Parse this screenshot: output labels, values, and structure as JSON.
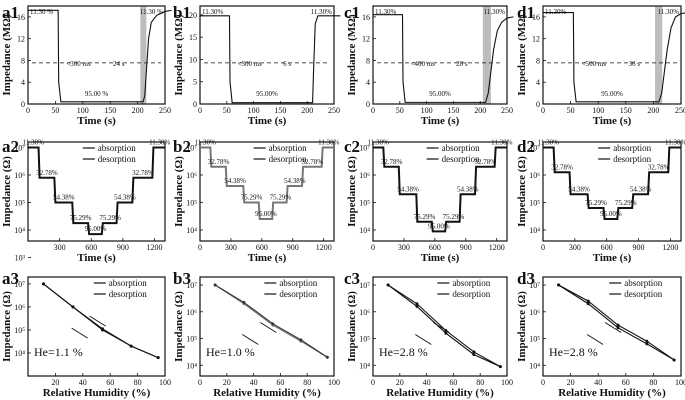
{
  "chart_data": [
    {
      "id": "a1",
      "type": "line",
      "row": 1,
      "col": 0,
      "title": "a1",
      "xlabel": "Time (s)",
      "ylabel": "Impedance (MΩ)",
      "xlim": [
        0,
        250
      ],
      "ylim": [
        0,
        18
      ],
      "xticks": [
        "0",
        "50",
        "100",
        "150",
        "200",
        "250"
      ],
      "yticks": [
        "0",
        "4",
        "8",
        "12",
        "16"
      ],
      "annotations": {
        "left": "11.30 %",
        "right": "11.30 %",
        "center": "95.00 %",
        "response": "<300 ms",
        "recovery": "24 s"
      },
      "series": [
        {
          "x": [
            0,
            55,
            56,
            60,
            210,
            213,
            216,
            220,
            225,
            235,
            250,
            262
          ],
          "y": [
            17.2,
            17.2,
            4,
            0.4,
            0.4,
            1.5,
            6,
            12,
            15,
            16.3,
            17,
            17.2
          ]
        }
      ],
      "shaded": [
        205,
        216
      ]
    },
    {
      "id": "b1",
      "type": "line",
      "row": 1,
      "col": 1,
      "title": "b1",
      "xlabel": "Time (s)",
      "ylabel": "Impedance (MΩ)",
      "xlim": [
        0,
        250
      ],
      "ylim": [
        0,
        22
      ],
      "xticks": [
        "0",
        "50",
        "100",
        "150",
        "200",
        "250"
      ],
      "yticks": [
        "0",
        "5",
        "10",
        "15",
        "20"
      ],
      "annotations": {
        "left": "11.30%",
        "right": "11.30%",
        "center": "95.00%",
        "response": "<300 ms",
        "recovery": "6 s"
      },
      "series": [
        {
          "x": [
            0,
            55,
            56,
            60,
            210,
            212,
            215,
            220,
            262
          ],
          "y": [
            19.8,
            19.8,
            5,
            0.3,
            0.3,
            8,
            18,
            19.8,
            19.8
          ]
        }
      ],
      "shaded": []
    },
    {
      "id": "c1",
      "type": "line",
      "row": 1,
      "col": 2,
      "title": "c1",
      "xlabel": "Time (s)",
      "ylabel": "Impedance (MΩ)",
      "xlim": [
        0,
        250
      ],
      "ylim": [
        0,
        18
      ],
      "xticks": [
        "0",
        "50",
        "100",
        "150",
        "200",
        "250"
      ],
      "yticks": [
        "0",
        "4",
        "8",
        "12",
        "16"
      ],
      "annotations": {
        "left": "11.30%",
        "right": "11.30%",
        "center": "95.00%",
        "response": "<400 ms",
        "recovery": "28 s"
      },
      "series": [
        {
          "x": [
            0,
            55,
            56,
            60,
            210,
            215,
            220,
            225,
            232,
            240,
            250,
            262
          ],
          "y": [
            16.4,
            16.4,
            4,
            0.3,
            0.3,
            2,
            6,
            10,
            13.5,
            15,
            15.8,
            16
          ]
        }
      ],
      "shaded": [
        205,
        220
      ]
    },
    {
      "id": "d1",
      "type": "line",
      "row": 1,
      "col": 3,
      "title": "d1",
      "xlabel": "Time (s)",
      "ylabel": "Impedance (MΩ)",
      "xlim": [
        0,
        250
      ],
      "ylim": [
        0,
        18
      ],
      "xticks": [
        "0",
        "50",
        "100",
        "150",
        "200",
        "250"
      ],
      "yticks": [
        "0",
        "4",
        "8",
        "12",
        "16"
      ],
      "annotations": {
        "left": "11.30%",
        "right": "11.30%",
        "center": "95.00%",
        "response": "<500 ms",
        "recovery": "36 s"
      },
      "series": [
        {
          "x": [
            0,
            55,
            56,
            60,
            210,
            215,
            220,
            225,
            232,
            240,
            250,
            262
          ],
          "y": [
            16.8,
            16.8,
            4,
            0.4,
            0.4,
            2,
            6,
            10,
            14,
            16,
            16.6,
            16.8
          ]
        }
      ],
      "shaded": [
        203,
        216
      ]
    },
    {
      "id": "a2",
      "type": "line",
      "row": 2,
      "col": 0,
      "title": "a2",
      "xlabel": "Time (s)",
      "ylabel": "Impedance (Ω)",
      "xlim": [
        0,
        1300
      ],
      "ylim_log": [
        3.6,
        7.2
      ],
      "xticks": [
        "300",
        "600",
        "900",
        "1200"
      ],
      "yticks": [
        "10³",
        "10⁴",
        "10⁵",
        "10⁶",
        "10⁷"
      ],
      "legend": [
        "absorption",
        "desorption"
      ],
      "levels": [
        "11.30%",
        "32.78%",
        "54.38%",
        "75.29%",
        "95.00%",
        "75.29%",
        "54.38%",
        "32.78%",
        "11.30%"
      ],
      "series": [
        {
          "x": [
            0,
            100,
            110,
            250,
            260,
            420,
            430,
            570,
            580,
            700,
            710,
            840,
            850,
            990,
            1000,
            1180,
            1190,
            1300
          ],
          "y": [
            7.0,
            7.0,
            5.9,
            5.9,
            5.0,
            5.0,
            4.25,
            4.25,
            3.85,
            3.85,
            4.25,
            4.25,
            5.0,
            5.0,
            5.9,
            5.9,
            7.0,
            7.0
          ]
        }
      ]
    },
    {
      "id": "b2",
      "type": "line",
      "row": 2,
      "col": 1,
      "title": "b2",
      "xlabel": "Time (s)",
      "ylabel": "Impedance (Ω)",
      "xlim": [
        0,
        1300
      ],
      "ylim_log": [
        3.6,
        7.2
      ],
      "xticks": [
        "0",
        "300",
        "600",
        "900",
        "1200"
      ],
      "yticks": [
        "10⁴",
        "10⁵",
        "10⁶",
        "10⁷"
      ],
      "legend": [
        "absorption",
        "desorption"
      ],
      "levels": [
        "11.30%",
        "32.78%",
        "54.38%",
        "75.29%",
        "95.00%",
        "75.29%",
        "54.38%",
        "32.78%",
        "11.30%"
      ],
      "series": [
        {
          "x": [
            0,
            100,
            110,
            250,
            260,
            420,
            430,
            570,
            580,
            700,
            710,
            840,
            850,
            990,
            1000,
            1180,
            1190,
            1300
          ],
          "y": [
            7.0,
            7.0,
            6.3,
            6.3,
            5.6,
            5.6,
            5.0,
            5.0,
            4.4,
            4.4,
            5.0,
            5.0,
            5.6,
            5.6,
            6.3,
            6.3,
            7.0,
            7.0
          ]
        }
      ]
    },
    {
      "id": "c2",
      "type": "line",
      "row": 2,
      "col": 2,
      "title": "c2",
      "xlabel": "Time (s)",
      "ylabel": "Impedance (Ω)",
      "xlim": [
        0,
        1300
      ],
      "ylim_log": [
        3.6,
        7.2
      ],
      "xticks": [
        "0",
        "300",
        "600",
        "900",
        "1200"
      ],
      "yticks": [
        "10⁴",
        "10⁵",
        "10⁶",
        "10⁷"
      ],
      "legend": [
        "absorption",
        "desorption"
      ],
      "levels": [
        "11.30%",
        "32.78%",
        "54.38%",
        "75.29%",
        "95.00%",
        "75.29%",
        "54.38%",
        "32.78%",
        "11.30%"
      ],
      "series": [
        {
          "x": [
            0,
            100,
            110,
            250,
            260,
            420,
            430,
            570,
            580,
            700,
            710,
            840,
            850,
            990,
            1000,
            1180,
            1190,
            1300
          ],
          "y": [
            7.0,
            7.0,
            6.3,
            6.3,
            5.3,
            5.3,
            4.3,
            4.3,
            3.95,
            3.95,
            4.3,
            4.3,
            5.3,
            5.3,
            6.3,
            6.3,
            7.0,
            7.0
          ]
        }
      ]
    },
    {
      "id": "d2",
      "type": "line",
      "row": 2,
      "col": 3,
      "title": "d2",
      "xlabel": "Time (s)",
      "ylabel": "Impedance (Ω)",
      "xlim": [
        0,
        1300
      ],
      "ylim_log": [
        3.6,
        7.2
      ],
      "xticks": [
        "0",
        "300",
        "600",
        "900",
        "1200"
      ],
      "yticks": [
        "10⁴",
        "10⁵",
        "10⁶",
        "10⁷"
      ],
      "legend": [
        "absorption",
        "desorption"
      ],
      "levels": [
        "11.30%",
        "32.78%",
        "54.38%",
        "75.29%",
        "95.00%",
        "75.29%",
        "54.38%",
        "32.78%",
        "11.30%"
      ],
      "series": [
        {
          "x": [
            0,
            100,
            110,
            250,
            260,
            420,
            430,
            570,
            580,
            700,
            710,
            840,
            850,
            990,
            1000,
            1180,
            1190,
            1300
          ],
          "y": [
            7.0,
            7.0,
            6.1,
            6.1,
            5.3,
            5.3,
            4.8,
            4.8,
            4.4,
            4.4,
            4.8,
            4.8,
            5.3,
            5.3,
            6.1,
            6.1,
            7.0,
            7.0
          ]
        }
      ]
    },
    {
      "id": "a3",
      "type": "line",
      "row": 3,
      "col": 0,
      "title": "a3",
      "xlabel": "Relative Humidity (%)",
      "ylabel": "Impedance (Ω)",
      "xlim": [
        0,
        100
      ],
      "ylim_log": [
        3,
        7.3
      ],
      "xticks": [
        "20",
        "40",
        "60",
        "80",
        "100"
      ],
      "yticks": [
        "10⁴",
        "10⁵",
        "10⁶",
        "10⁷"
      ],
      "legend": [
        "absorption",
        "desorption"
      ],
      "hysteresis": "He=1.1 %",
      "series": [
        {
          "name": "absorption",
          "x": [
            11.3,
            32.78,
            54.38,
            75.29,
            95.0
          ],
          "y": [
            7.0,
            6.0,
            5.0,
            4.3,
            3.8
          ]
        },
        {
          "name": "desorption",
          "x": [
            11.3,
            32.78,
            54.38,
            75.29,
            95.0
          ],
          "y": [
            7.0,
            6.0,
            5.05,
            4.3,
            3.8
          ]
        }
      ]
    },
    {
      "id": "b3",
      "type": "line",
      "row": 3,
      "col": 1,
      "title": "b3",
      "xlabel": "Relative Humidity (%)",
      "ylabel": "Impedance (Ω)",
      "xlim": [
        0,
        100
      ],
      "ylim_log": [
        3.6,
        7.3
      ],
      "xticks": [
        "0",
        "20",
        "40",
        "60",
        "80",
        "100"
      ],
      "yticks": [
        "10⁴",
        "10⁵",
        "10⁶",
        "10⁷"
      ],
      "legend": [
        "absorption",
        "desorption"
      ],
      "hysteresis": "He=1.0 %",
      "series": [
        {
          "name": "absorption",
          "x": [
            11.3,
            32.78,
            54.38,
            75.29,
            95.0
          ],
          "y": [
            7.0,
            6.3,
            5.5,
            4.9,
            4.3
          ]
        },
        {
          "name": "desorption",
          "x": [
            11.3,
            32.78,
            54.38,
            75.29,
            95.0
          ],
          "y": [
            7.0,
            6.35,
            5.55,
            4.95,
            4.3
          ]
        }
      ]
    },
    {
      "id": "c3",
      "type": "line",
      "row": 3,
      "col": 2,
      "title": "c3",
      "xlabel": "Relative Humidity (%)",
      "ylabel": "Impedance (Ω)",
      "xlim": [
        0,
        100
      ],
      "ylim_log": [
        3.6,
        7.3
      ],
      "xticks": [
        "0",
        "20",
        "40",
        "60",
        "80",
        "100"
      ],
      "yticks": [
        "10⁴",
        "10⁵",
        "10⁶",
        "10⁷"
      ],
      "legend": [
        "absorption",
        "desorption"
      ],
      "hysteresis": "He=2.8 %",
      "series": [
        {
          "name": "absorption",
          "x": [
            11.3,
            32.78,
            54.38,
            75.29,
            95.0
          ],
          "y": [
            7.0,
            6.2,
            5.2,
            4.4,
            3.95
          ]
        },
        {
          "name": "desorption",
          "x": [
            11.3,
            32.78,
            54.38,
            75.29,
            95.0
          ],
          "y": [
            7.0,
            6.3,
            5.3,
            4.5,
            3.95
          ]
        }
      ]
    },
    {
      "id": "d3",
      "type": "line",
      "row": 3,
      "col": 3,
      "title": "d3",
      "xlabel": "Relative Humidity (%)",
      "ylabel": "Impedance (Ω)",
      "xlim": [
        0,
        100
      ],
      "ylim_log": [
        3.6,
        7.3
      ],
      "xticks": [
        "0",
        "20",
        "40",
        "60",
        "80",
        "100"
      ],
      "yticks": [
        "10⁴",
        "10⁵",
        "10⁶",
        "10⁷"
      ],
      "legend": [
        "absorption",
        "desorption"
      ],
      "hysteresis": "He=2.8 %",
      "series": [
        {
          "name": "absorption",
          "x": [
            11.3,
            32.78,
            54.38,
            75.29,
            95.0
          ],
          "y": [
            7.0,
            6.3,
            5.4,
            4.8,
            4.2
          ]
        },
        {
          "name": "desorption",
          "x": [
            11.3,
            32.78,
            54.38,
            75.29,
            95.0
          ],
          "y": [
            7.0,
            6.4,
            5.5,
            4.9,
            4.2
          ]
        }
      ]
    }
  ]
}
